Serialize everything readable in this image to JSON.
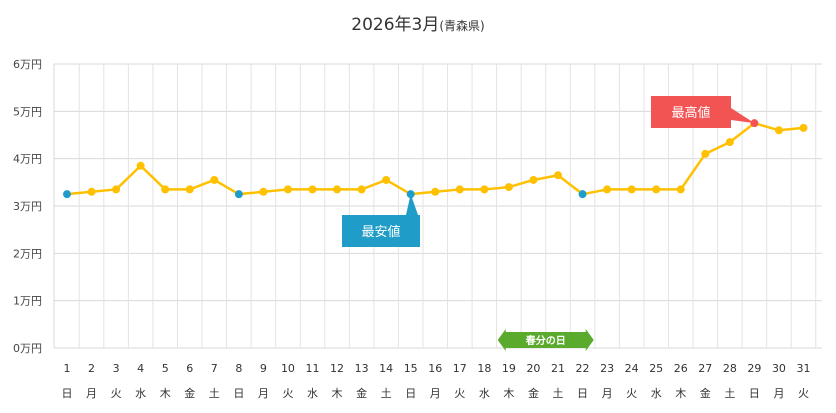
{
  "chart_data": {
    "type": "line",
    "title": "2026年3月",
    "subtitle": "(青森県)",
    "ylim": [
      0,
      60000
    ],
    "ytick_values": [
      0,
      10000,
      20000,
      30000,
      40000,
      50000,
      60000
    ],
    "ytick_labels": [
      "0万円",
      "1万円",
      "2万円",
      "3万円",
      "4万円",
      "5万円",
      "6万円"
    ],
    "days": [
      "1",
      "2",
      "3",
      "4",
      "5",
      "6",
      "7",
      "8",
      "9",
      "10",
      "11",
      "12",
      "13",
      "14",
      "15",
      "16",
      "17",
      "18",
      "19",
      "20",
      "21",
      "22",
      "23",
      "24",
      "25",
      "26",
      "27",
      "28",
      "29",
      "30",
      "31"
    ],
    "weekdays": [
      "日",
      "月",
      "火",
      "水",
      "木",
      "金",
      "土",
      "日",
      "月",
      "火",
      "水",
      "木",
      "金",
      "土",
      "日",
      "月",
      "火",
      "水",
      "木",
      "金",
      "土",
      "日",
      "月",
      "火",
      "水",
      "木",
      "金",
      "土",
      "日",
      "月",
      "火"
    ],
    "values": [
      32500,
      33000,
      33500,
      38500,
      33500,
      33500,
      35500,
      32500,
      33000,
      33500,
      33500,
      33500,
      33500,
      35500,
      32500,
      33000,
      33500,
      33500,
      34000,
      35500,
      36500,
      32500,
      33500,
      33500,
      33500,
      33500,
      41000,
      43500,
      47500,
      46000,
      46500
    ],
    "line_color": "#FFC000",
    "highlight_color": "#1F9DC8",
    "max_color": "#F25454",
    "highlight_indices": [
      0,
      7,
      14,
      21
    ],
    "min_index": 14,
    "max_index": 28,
    "min_label": "最安値",
    "max_label": "最高値",
    "holiday": {
      "label": "春分の日",
      "index": 19,
      "color": "#5AAA2E"
    }
  }
}
